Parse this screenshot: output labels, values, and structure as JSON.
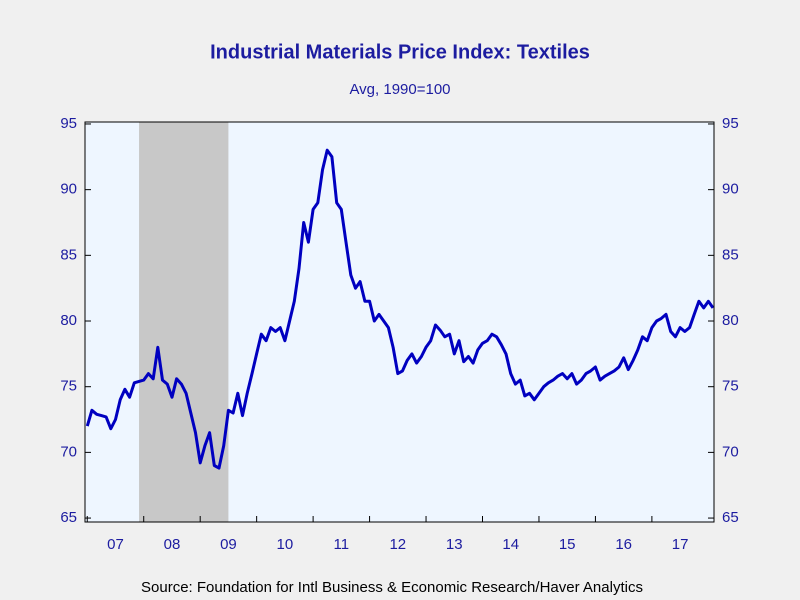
{
  "chart_data": {
    "type": "line",
    "title": "Industrial Materials Price Index: Textiles",
    "subtitle": "Avg, 1990=100",
    "source": "Source:  Foundation for Intl Business & Economic Research/Haver Analytics",
    "color": "#0000c0",
    "shade_color": "#c8c8c8",
    "shaded_ranges": [
      [
        2007.917,
        2009.5
      ]
    ],
    "xlim": [
      2006.96,
      2018.1
    ],
    "ylim": [
      64.7,
      95.15
    ],
    "yticks": [
      65,
      70,
      75,
      80,
      85,
      90,
      95
    ],
    "xticks": [
      {
        "value": 2007,
        "label": "07"
      },
      {
        "value": 2008,
        "label": "08"
      },
      {
        "value": 2009,
        "label": "09"
      },
      {
        "value": 2010,
        "label": "10"
      },
      {
        "value": 2011,
        "label": "11"
      },
      {
        "value": 2012,
        "label": "12"
      },
      {
        "value": 2013,
        "label": "13"
      },
      {
        "value": 2014,
        "label": "14"
      },
      {
        "value": 2015,
        "label": "15"
      },
      {
        "value": 2016,
        "label": "16"
      },
      {
        "value": 2017,
        "label": "17"
      }
    ],
    "x": [
      2007,
      2007.083,
      2007.167,
      2007.25,
      2007.333,
      2007.417,
      2007.5,
      2007.583,
      2007.667,
      2007.75,
      2007.833,
      2007.917,
      2008,
      2008.083,
      2008.167,
      2008.25,
      2008.333,
      2008.417,
      2008.5,
      2008.583,
      2008.667,
      2008.75,
      2008.833,
      2008.917,
      2009,
      2009.083,
      2009.167,
      2009.25,
      2009.333,
      2009.417,
      2009.5,
      2009.583,
      2009.667,
      2009.75,
      2009.833,
      2009.917,
      2010,
      2010.083,
      2010.167,
      2010.25,
      2010.333,
      2010.417,
      2010.5,
      2010.583,
      2010.667,
      2010.75,
      2010.833,
      2010.917,
      2011,
      2011.083,
      2011.167,
      2011.25,
      2011.333,
      2011.417,
      2011.5,
      2011.583,
      2011.667,
      2011.75,
      2011.833,
      2011.917,
      2012,
      2012.083,
      2012.167,
      2012.25,
      2012.333,
      2012.417,
      2012.5,
      2012.583,
      2012.667,
      2012.75,
      2012.833,
      2012.917,
      2013,
      2013.083,
      2013.167,
      2013.25,
      2013.333,
      2013.417,
      2013.5,
      2013.583,
      2013.667,
      2013.75,
      2013.833,
      2013.917,
      2014,
      2014.083,
      2014.167,
      2014.25,
      2014.333,
      2014.417,
      2014.5,
      2014.583,
      2014.667,
      2014.75,
      2014.833,
      2014.917,
      2015,
      2015.083,
      2015.167,
      2015.25,
      2015.333,
      2015.417,
      2015.5,
      2015.583,
      2015.667,
      2015.75,
      2015.833,
      2015.917,
      2016,
      2016.083,
      2016.167,
      2016.25,
      2016.333,
      2016.417,
      2016.5,
      2016.583,
      2016.667,
      2016.75,
      2016.833,
      2016.917,
      2017,
      2017.083,
      2017.167,
      2017.25,
      2017.333,
      2017.417,
      2017.5,
      2017.583,
      2017.667,
      2017.75,
      2017.833,
      2017.917,
      2018,
      2018.083
    ],
    "values": [
      72,
      73.2,
      72.9,
      72.8,
      72.7,
      71.8,
      72.5,
      74,
      74.8,
      74.2,
      75.3,
      75.4,
      75.5,
      76,
      75.6,
      78,
      75.5,
      75.2,
      74.2,
      75.6,
      75.2,
      74.5,
      73,
      71.5,
      69.2,
      70.5,
      71.5,
      69,
      68.8,
      70.5,
      73.2,
      73,
      74.5,
      72.8,
      74.5,
      76,
      77.5,
      79,
      78.5,
      79.5,
      79.2,
      79.5,
      78.5,
      80,
      81.5,
      84,
      87.5,
      86,
      88.5,
      89,
      91.5,
      93,
      92.5,
      89,
      88.5,
      86,
      83.5,
      82.5,
      83,
      81.5,
      81.5,
      80,
      80.5,
      80,
      79.5,
      78,
      76,
      76.2,
      77,
      77.5,
      76.8,
      77.3,
      78,
      78.5,
      79.7,
      79.3,
      78.8,
      79,
      77.5,
      78.5,
      76.9,
      77.3,
      76.8,
      77.8,
      78.3,
      78.5,
      79,
      78.8,
      78.2,
      77.5,
      76,
      75.2,
      75.5,
      74.3,
      74.5,
      74,
      74.5,
      75,
      75.3,
      75.5,
      75.8,
      76,
      75.6,
      76,
      75.2,
      75.5,
      76,
      76.2,
      76.5,
      75.5,
      75.8,
      76,
      76.2,
      76.5,
      77.2,
      76.3,
      77,
      77.8,
      78.8,
      78.5,
      79.5,
      80,
      80.2,
      80.5,
      79.2,
      78.8,
      79.5,
      79.2,
      79.5,
      80.5,
      81.5,
      81,
      81.5,
      81
    ]
  }
}
